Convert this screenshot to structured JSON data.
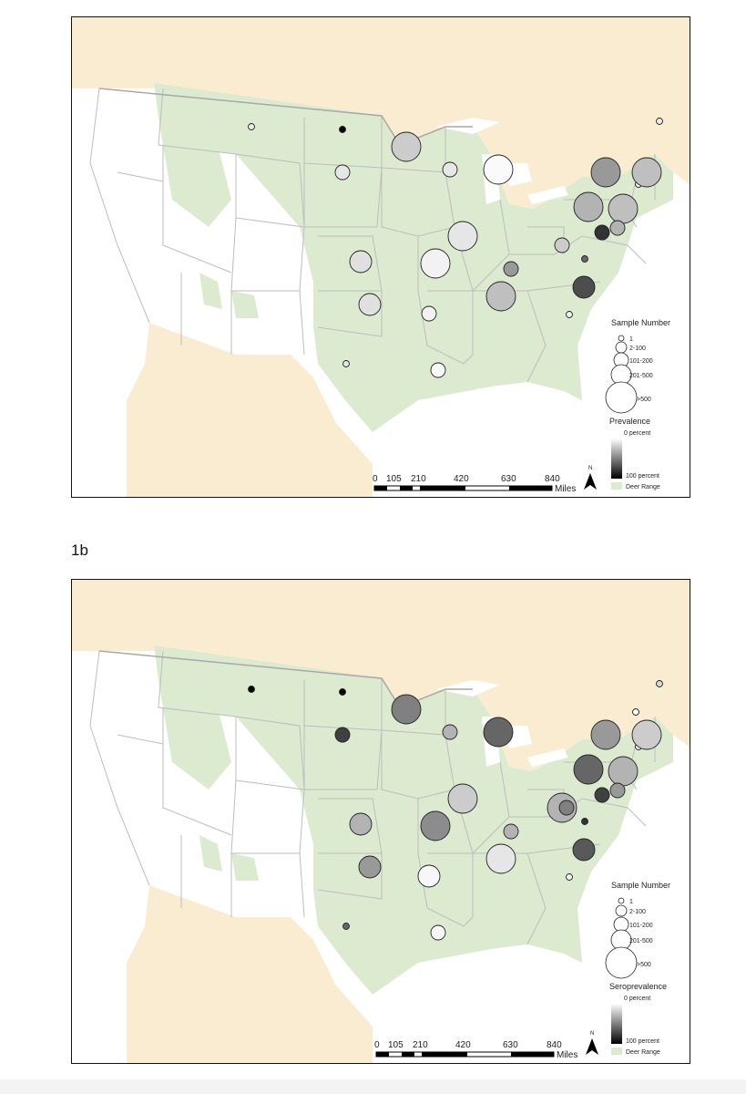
{
  "figure_a": {
    "legend": {
      "size_title": "Sample Number",
      "size_classes": [
        "1",
        "2-100",
        "101-200",
        "201-500",
        ">500"
      ],
      "color_title": "Prevalence",
      "color_min": "0 percent",
      "color_max": "100 percent",
      "range_label": "Deer Range"
    },
    "scale_bar": {
      "ticks": [
        "0",
        "105",
        "210",
        "420",
        "630",
        "840"
      ],
      "unit": "Miles"
    },
    "north_label": "N",
    "markers": [
      {
        "region": "Montana",
        "size": "1",
        "shade": 0.08
      },
      {
        "region": "North Dakota",
        "size": "1",
        "shade": 1.0
      },
      {
        "region": "South Dakota",
        "size": "2-100",
        "shade": 0.1
      },
      {
        "region": "Minnesota",
        "size": "201-500",
        "shade": 0.2
      },
      {
        "region": "Wisconsin",
        "size": "2-100",
        "shade": 0.1
      },
      {
        "region": "Michigan",
        "size": "201-500",
        "shade": 0.02
      },
      {
        "region": "Iowa",
        "size": "201-500",
        "shade": 0.1
      },
      {
        "region": "Kansas",
        "size": "101-200",
        "shade": 0.12
      },
      {
        "region": "Missouri",
        "size": "201-500",
        "shade": 0.05
      },
      {
        "region": "Oklahoma",
        "size": "101-200",
        "shade": 0.12
      },
      {
        "region": "Arkansas",
        "size": "2-100",
        "shade": 0.05
      },
      {
        "region": "Texas",
        "size": "1",
        "shade": 0.1
      },
      {
        "region": "Louisiana",
        "size": "2-100",
        "shade": 0.03
      },
      {
        "region": "Tennessee",
        "size": "201-500",
        "shade": 0.25
      },
      {
        "region": "Kentucky",
        "size": "2-100",
        "shade": 0.4
      },
      {
        "region": "Ohio",
        "size": "2-100",
        "shade": 0.2
      },
      {
        "region": "New York",
        "size": "201-500",
        "shade": 0.4
      },
      {
        "region": "Vermont",
        "size": "1",
        "shade": 0.02
      },
      {
        "region": "Maine",
        "size": "1",
        "shade": 0.08
      },
      {
        "region": "Massachusetts",
        "size": "201-500",
        "shade": 0.25
      },
      {
        "region": "Pennsylvania",
        "size": "201-500",
        "shade": 0.3
      },
      {
        "region": "New Jersey",
        "size": "201-500",
        "shade": 0.25
      },
      {
        "region": "Maryland",
        "size": "2-100",
        "shade": 0.8
      },
      {
        "region": "Delaware",
        "size": "2-100",
        "shade": 0.3
      },
      {
        "region": "Virginia",
        "size": "1",
        "shade": 0.6
      },
      {
        "region": "North Carolina",
        "size": "101-200",
        "shade": 0.7
      },
      {
        "region": "South Carolina",
        "size": "1",
        "shade": 0.05
      }
    ]
  },
  "figure_b_label": "1b",
  "figure_b": {
    "legend": {
      "size_title": "Sample Number",
      "size_classes": [
        "1",
        "2-100",
        "101-200",
        "201-500",
        ">500"
      ],
      "color_title": "Seroprevalence",
      "color_min": "0 percent",
      "color_max": "100 percent",
      "range_label": "Deer Range"
    },
    "scale_bar": {
      "ticks": [
        "0",
        "105",
        "210",
        "420",
        "630",
        "840"
      ],
      "unit": "Miles"
    },
    "north_label": "N",
    "markers": [
      {
        "region": "Montana",
        "size": "1",
        "shade": 1.0
      },
      {
        "region": "North Dakota",
        "size": "1",
        "shade": 1.0
      },
      {
        "region": "South Dakota",
        "size": "2-100",
        "shade": 0.75
      },
      {
        "region": "Minnesota",
        "size": "201-500",
        "shade": 0.5
      },
      {
        "region": "Wisconsin",
        "size": "2-100",
        "shade": 0.3
      },
      {
        "region": "Michigan",
        "size": "201-500",
        "shade": 0.6
      },
      {
        "region": "Iowa",
        "size": "201-500",
        "shade": 0.2
      },
      {
        "region": "Kansas",
        "size": "101-200",
        "shade": 0.3
      },
      {
        "region": "Missouri",
        "size": "201-500",
        "shade": 0.45
      },
      {
        "region": "Oklahoma",
        "size": "101-200",
        "shade": 0.4
      },
      {
        "region": "Arkansas",
        "size": "101-200",
        "shade": 0.03
      },
      {
        "region": "Texas",
        "size": "1",
        "shade": 0.6
      },
      {
        "region": "Louisiana",
        "size": "2-100",
        "shade": 0.03
      },
      {
        "region": "Tennessee",
        "size": "201-500",
        "shade": 0.1
      },
      {
        "region": "Kentucky",
        "size": "2-100",
        "shade": 0.3
      },
      {
        "region": "Ohio",
        "size": "201-500",
        "shade": 0.3
      },
      {
        "region": "New York",
        "size": "201-500",
        "shade": 0.4
      },
      {
        "region": "Vermont",
        "size": "1",
        "shade": 0.03
      },
      {
        "region": "Maine",
        "size": "1",
        "shade": 0.15
      },
      {
        "region": "Massachusetts",
        "size": "201-500",
        "shade": 0.2
      },
      {
        "region": "New Hampshire",
        "size": "1",
        "shade": 0.02
      },
      {
        "region": "Pennsylvania",
        "size": "201-500",
        "shade": 0.6
      },
      {
        "region": "New Jersey",
        "size": "201-500",
        "shade": 0.3
      },
      {
        "region": "West Virginia",
        "size": "2-100",
        "shade": 0.5
      },
      {
        "region": "Maryland",
        "size": "2-100",
        "shade": 0.75
      },
      {
        "region": "Delaware",
        "size": "2-100",
        "shade": 0.4
      },
      {
        "region": "Virginia",
        "size": "1",
        "shade": 0.8
      },
      {
        "region": "North Carolina",
        "size": "101-200",
        "shade": 0.65
      },
      {
        "region": "South Carolina",
        "size": "1",
        "shade": 0.05
      }
    ]
  },
  "colors": {
    "deer_range": "#dcead0",
    "land_outside": "#ffffff",
    "canada_mexico": "#faecd1",
    "water": "#ffffff",
    "state_border": "#bdbdbd",
    "frame": "#111111"
  }
}
